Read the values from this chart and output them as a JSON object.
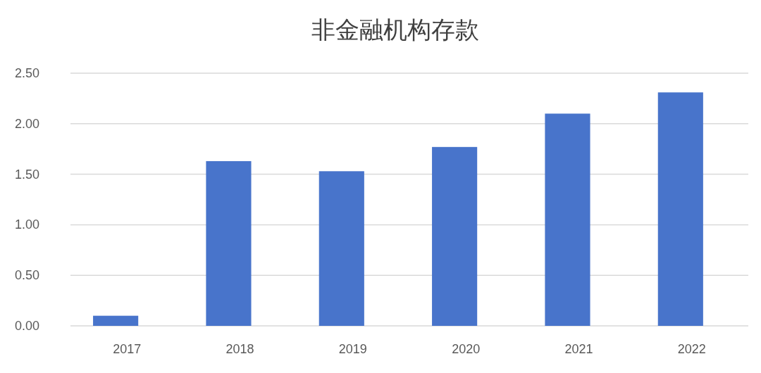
{
  "chart_data": {
    "type": "bar",
    "title": "非金融机构存款",
    "categories": [
      "2017",
      "2018",
      "2019",
      "2020",
      "2021",
      "2022"
    ],
    "values": [
      0.1,
      1.63,
      1.53,
      1.77,
      2.1,
      2.31
    ],
    "color": "#4874cb",
    "ylim": [
      0,
      2.5
    ],
    "yticks": [
      {
        "value": 0,
        "label": "0.00"
      },
      {
        "value": 0.5,
        "label": "0.50"
      },
      {
        "value": 1,
        "label": "1.00"
      },
      {
        "value": 1.5,
        "label": "1.50"
      },
      {
        "value": 2,
        "label": "2.00"
      },
      {
        "value": 2.5,
        "label": "2.50"
      }
    ],
    "grid": "y"
  }
}
